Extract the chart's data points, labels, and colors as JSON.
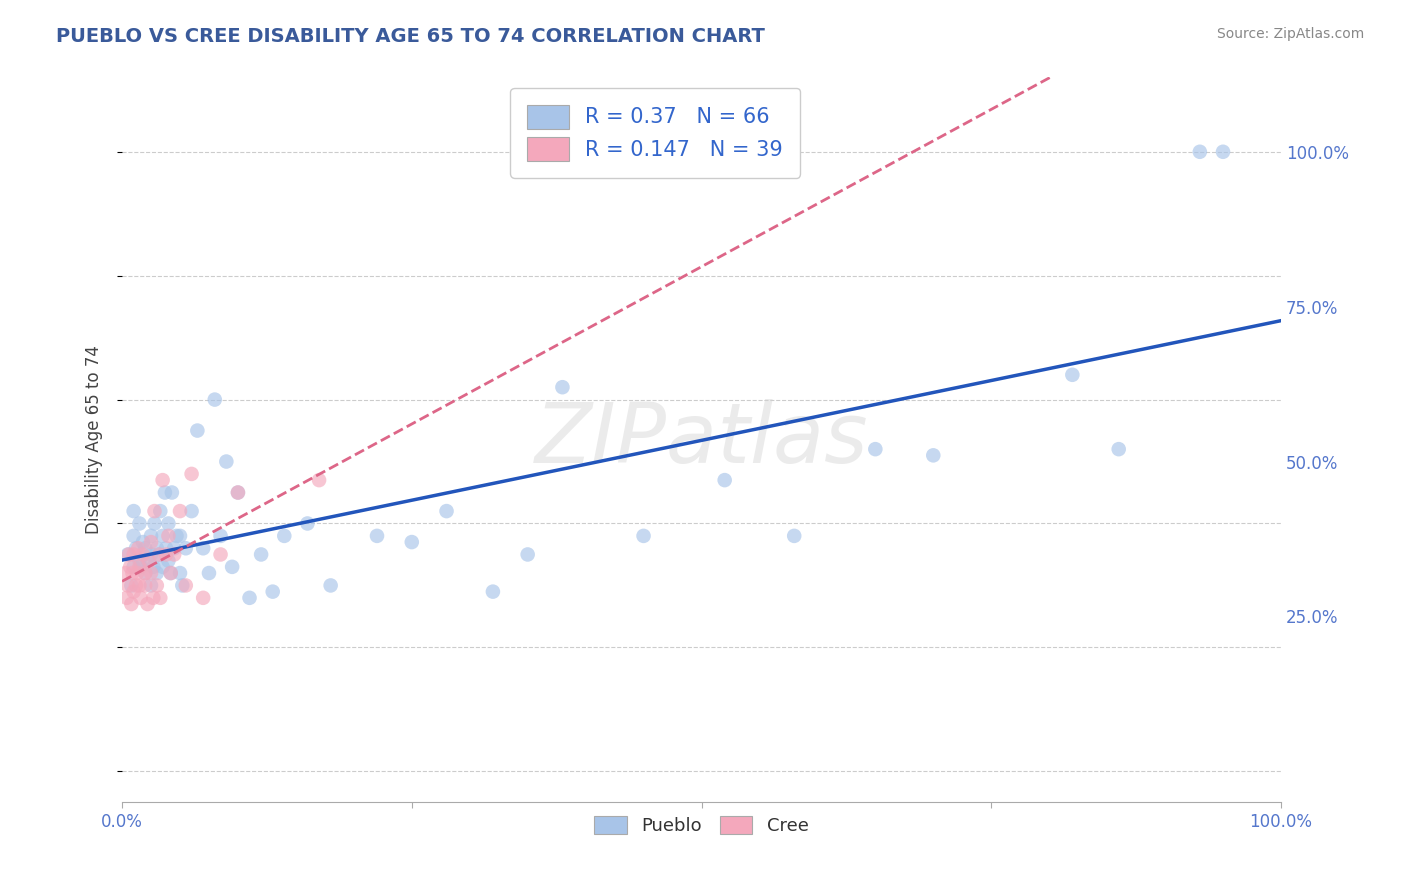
{
  "title": "PUEBLO VS CREE DISABILITY AGE 65 TO 74 CORRELATION CHART",
  "source_text": "Source: ZipAtlas.com",
  "ylabel": "Disability Age 65 to 74",
  "pueblo_R": 0.37,
  "pueblo_N": 66,
  "cree_R": 0.147,
  "cree_N": 39,
  "pueblo_color": "#a8c4e8",
  "cree_color": "#f4a8bc",
  "pueblo_line_color": "#2255bb",
  "cree_line_color": "#dd6688",
  "background_color": "#ffffff",
  "grid_color": "#cccccc",
  "title_color": "#3a5a9a",
  "legend_color": "#3366cc",
  "tick_color": "#5577cc",
  "xlim": [
    0.0,
    1.0
  ],
  "ylim": [
    -0.05,
    1.12
  ],
  "xtick_positions": [
    0.0,
    0.25,
    0.5,
    0.75,
    1.0
  ],
  "ytick_positions": [
    0.25,
    0.5,
    0.75,
    1.0
  ],
  "pueblo_x": [
    0.005,
    0.008,
    0.01,
    0.01,
    0.01,
    0.012,
    0.015,
    0.015,
    0.016,
    0.018,
    0.02,
    0.02,
    0.022,
    0.025,
    0.025,
    0.025,
    0.027,
    0.028,
    0.03,
    0.03,
    0.032,
    0.033,
    0.035,
    0.035,
    0.037,
    0.038,
    0.04,
    0.04,
    0.042,
    0.043,
    0.045,
    0.047,
    0.05,
    0.05,
    0.052,
    0.055,
    0.06,
    0.065,
    0.07,
    0.075,
    0.08,
    0.085,
    0.09,
    0.095,
    0.1,
    0.11,
    0.12,
    0.13,
    0.14,
    0.16,
    0.18,
    0.22,
    0.25,
    0.28,
    0.32,
    0.35,
    0.38,
    0.45,
    0.52,
    0.58,
    0.65,
    0.7,
    0.82,
    0.86,
    0.93,
    0.95
  ],
  "pueblo_y": [
    0.35,
    0.3,
    0.33,
    0.38,
    0.42,
    0.36,
    0.34,
    0.4,
    0.33,
    0.37,
    0.32,
    0.36,
    0.34,
    0.3,
    0.35,
    0.38,
    0.33,
    0.4,
    0.32,
    0.36,
    0.35,
    0.42,
    0.33,
    0.38,
    0.45,
    0.36,
    0.34,
    0.4,
    0.32,
    0.45,
    0.36,
    0.38,
    0.32,
    0.38,
    0.3,
    0.36,
    0.42,
    0.55,
    0.36,
    0.32,
    0.6,
    0.38,
    0.5,
    0.33,
    0.45,
    0.28,
    0.35,
    0.29,
    0.38,
    0.4,
    0.3,
    0.38,
    0.37,
    0.42,
    0.29,
    0.35,
    0.62,
    0.38,
    0.47,
    0.38,
    0.52,
    0.51,
    0.64,
    0.52,
    1.0,
    1.0
  ],
  "cree_x": [
    0.003,
    0.004,
    0.005,
    0.006,
    0.007,
    0.008,
    0.009,
    0.01,
    0.01,
    0.012,
    0.013,
    0.014,
    0.015,
    0.015,
    0.016,
    0.018,
    0.02,
    0.02,
    0.022,
    0.023,
    0.025,
    0.025,
    0.027,
    0.028,
    0.03,
    0.032,
    0.033,
    0.035,
    0.038,
    0.04,
    0.042,
    0.045,
    0.05,
    0.055,
    0.06,
    0.07,
    0.085,
    0.1,
    0.17
  ],
  "cree_y": [
    0.32,
    0.28,
    0.3,
    0.35,
    0.33,
    0.27,
    0.32,
    0.29,
    0.35,
    0.3,
    0.32,
    0.36,
    0.33,
    0.3,
    0.28,
    0.35,
    0.32,
    0.3,
    0.27,
    0.34,
    0.37,
    0.32,
    0.28,
    0.42,
    0.3,
    0.35,
    0.28,
    0.47,
    0.35,
    0.38,
    0.32,
    0.35,
    0.42,
    0.3,
    0.48,
    0.28,
    0.35,
    0.45,
    0.47
  ],
  "marker_size": 110,
  "marker_alpha": 0.65,
  "figsize": [
    14.06,
    8.92
  ],
  "dpi": 100
}
